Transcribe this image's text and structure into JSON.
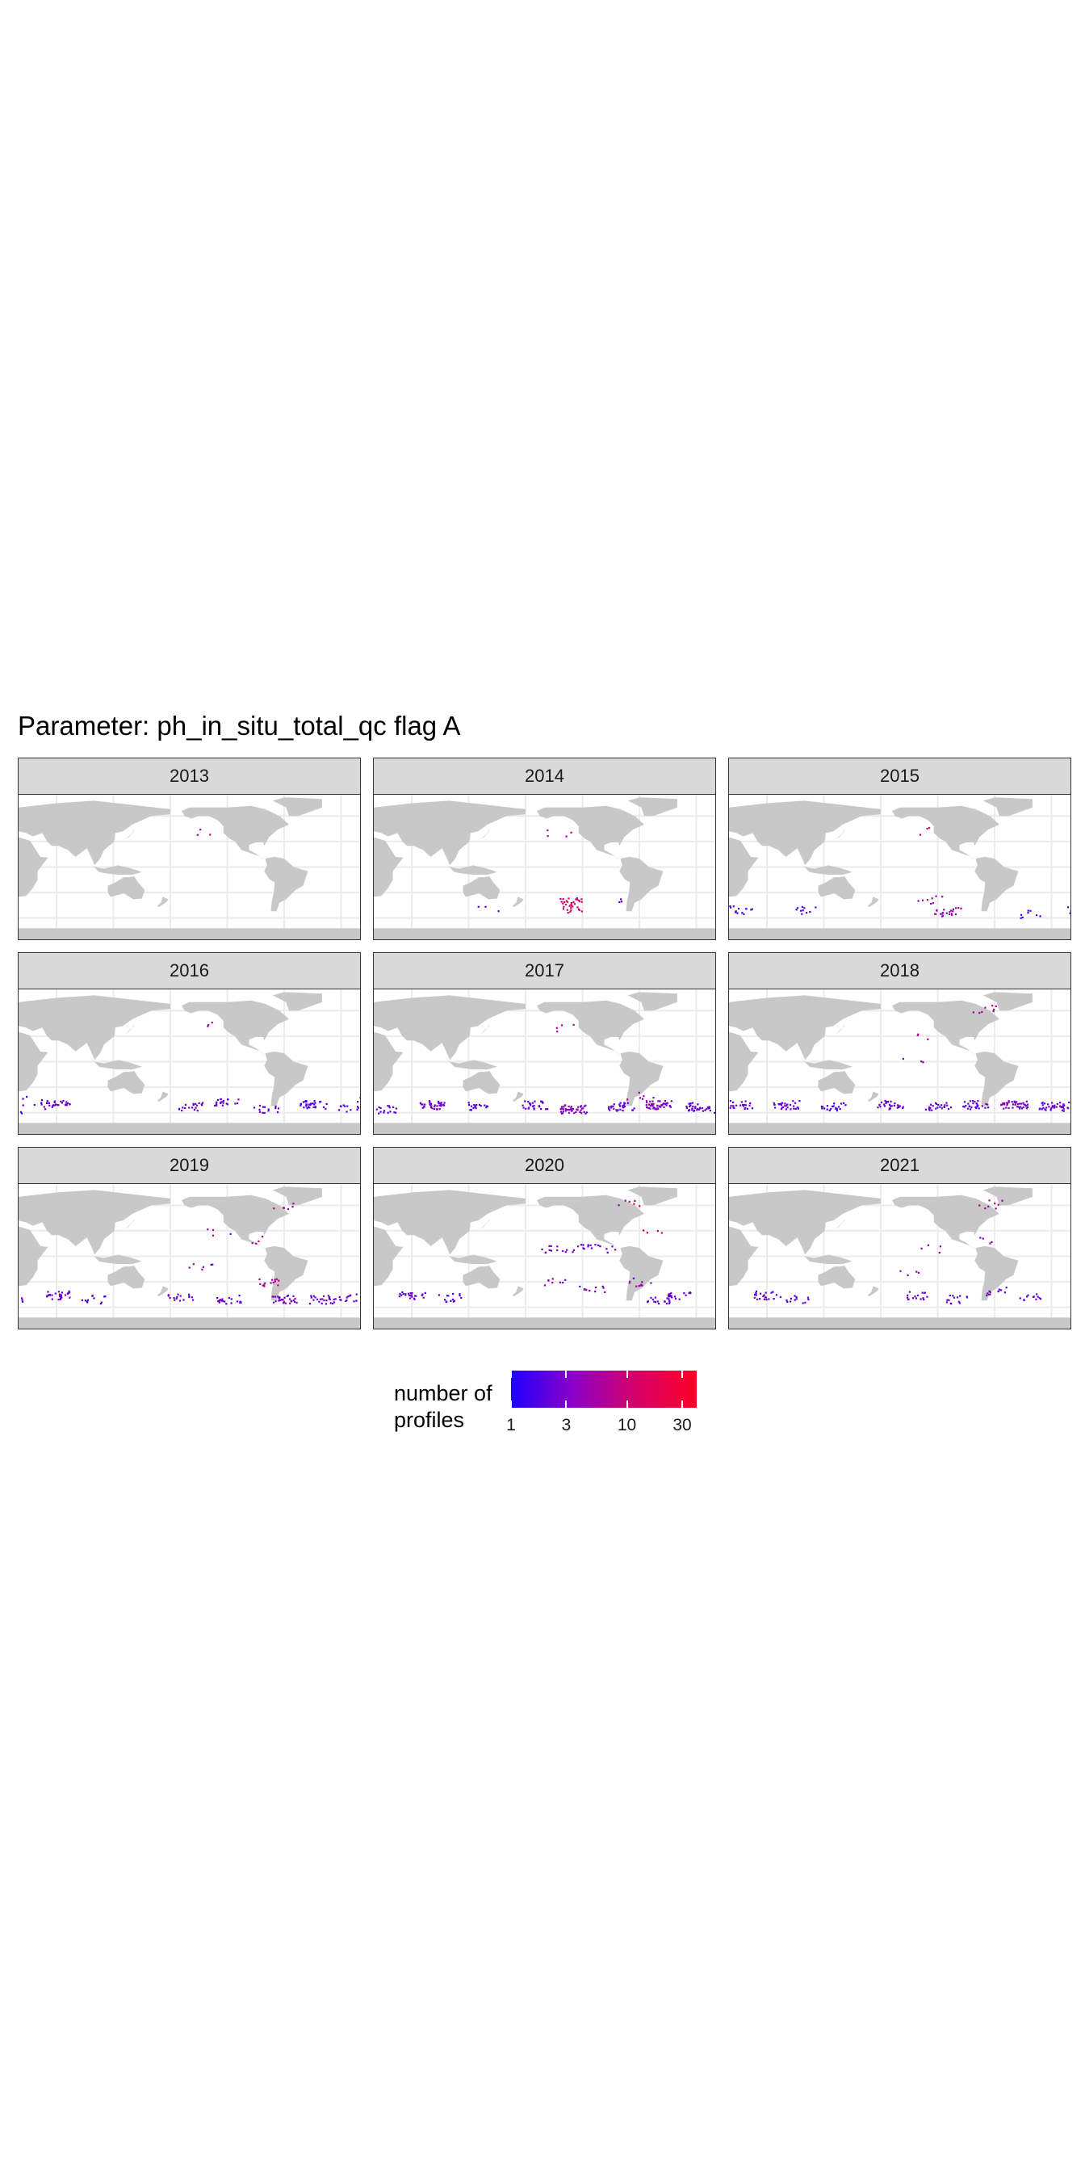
{
  "figure": {
    "title": "Parameter: ph_in_situ_total_qc flag A"
  },
  "colors": {
    "land": "#c8c8c8",
    "grid": "#ebebeb",
    "low": "#1f00ff",
    "mid": "#a000a8",
    "high": "#ff0026"
  },
  "panels": [
    {
      "year": "2013",
      "clusters": [
        [
          -145,
          42,
          0.7,
          3
        ],
        [
          0,
          0,
          0,
          0
        ]
      ]
    },
    {
      "year": "2014",
      "clusters": [
        [
          -145,
          42,
          0.7,
          4
        ],
        [
          -135,
          -40,
          0.8,
          22
        ],
        [
          -130,
          -50,
          0.8,
          12
        ],
        [
          -90,
          -40,
          0.3,
          3
        ],
        [
          140,
          -50,
          0.2,
          3
        ]
      ]
    },
    {
      "year": "2015",
      "clusters": [
        [
          -140,
          43,
          0.8,
          3
        ],
        [
          -130,
          -38,
          0.6,
          8
        ],
        [
          -110,
          -52,
          0.5,
          22
        ],
        [
          -20,
          -55,
          0.2,
          8
        ],
        [
          30,
          -50,
          0.2,
          16
        ],
        [
          100,
          -50,
          0.2,
          10
        ]
      ]
    },
    {
      "year": "2016",
      "clusters": [
        [
          60,
          -50,
          0.3,
          26
        ],
        [
          30,
          -45,
          0.2,
          8
        ],
        [
          -160,
          -52,
          0.3,
          20
        ],
        [
          -120,
          -48,
          0.3,
          20
        ],
        [
          -80,
          -55,
          0.3,
          14
        ],
        [
          -30,
          -50,
          0.2,
          30
        ],
        [
          10,
          -55,
          0.2,
          14
        ],
        [
          -140,
          45,
          0.6,
          3
        ]
      ]
    },
    {
      "year": "2017",
      "clusters": [
        [
          80,
          -50,
          0.3,
          34
        ],
        [
          130,
          -52,
          0.2,
          18
        ],
        [
          -170,
          -50,
          0.3,
          26
        ],
        [
          -130,
          -55,
          0.4,
          44
        ],
        [
          -80,
          -52,
          0.3,
          28
        ],
        [
          -40,
          -50,
          0.4,
          46
        ],
        [
          0,
          -52,
          0.3,
          34
        ],
        [
          30,
          -55,
          0.3,
          18
        ],
        [
          -140,
          40,
          0.5,
          4
        ],
        [
          -60,
          -40,
          0.5,
          6
        ]
      ]
    },
    {
      "year": "2018",
      "clusters": [
        [
          80,
          -50,
          0.3,
          30
        ],
        [
          130,
          -52,
          0.2,
          20
        ],
        [
          -170,
          -50,
          0.3,
          28
        ],
        [
          -120,
          -52,
          0.3,
          24
        ],
        [
          -80,
          -50,
          0.3,
          28
        ],
        [
          -40,
          -50,
          0.4,
          40
        ],
        [
          0,
          -52,
          0.3,
          34
        ],
        [
          30,
          -50,
          0.3,
          24
        ],
        [
          -70,
          62,
          0.7,
          8
        ],
        [
          -140,
          30,
          0.6,
          3
        ],
        [
          -150,
          0,
          0.4,
          3
        ]
      ]
    },
    {
      "year": "2019",
      "clusters": [
        [
          60,
          -45,
          0.3,
          28
        ],
        [
          100,
          -50,
          0.2,
          12
        ],
        [
          -170,
          -48,
          0.3,
          16
        ],
        [
          -120,
          -50,
          0.3,
          20
        ],
        [
          -75,
          -30,
          0.6,
          14
        ],
        [
          -60,
          -50,
          0.4,
          30
        ],
        [
          -20,
          -50,
          0.3,
          24
        ],
        [
          10,
          -48,
          0.3,
          16
        ],
        [
          -65,
          60,
          0.7,
          6
        ],
        [
          -130,
          30,
          0.5,
          4
        ],
        [
          -150,
          -10,
          0.5,
          6
        ],
        [
          -90,
          20,
          0.7,
          4
        ]
      ]
    },
    {
      "year": "2020",
      "clusters": [
        [
          60,
          -45,
          0.3,
          24
        ],
        [
          100,
          -48,
          0.2,
          14
        ],
        [
          -150,
          10,
          0.3,
          12
        ],
        [
          -120,
          10,
          0.3,
          10
        ],
        [
          -100,
          10,
          0.3,
          8
        ],
        [
          -150,
          -30,
          0.5,
          8
        ],
        [
          -110,
          -38,
          0.4,
          10
        ],
        [
          -60,
          -30,
          0.5,
          10
        ],
        [
          -40,
          -50,
          0.3,
          22
        ],
        [
          -20,
          -45,
          0.3,
          14
        ],
        [
          -70,
          62,
          0.7,
          6
        ],
        [
          -50,
          30,
          0.8,
          4
        ]
      ]
    },
    {
      "year": "2021",
      "clusters": [
        [
          60,
          -45,
          0.3,
          22
        ],
        [
          90,
          -50,
          0.2,
          12
        ],
        [
          -140,
          -45,
          0.3,
          16
        ],
        [
          -100,
          -50,
          0.3,
          14
        ],
        [
          -60,
          -40,
          0.4,
          12
        ],
        [
          -20,
          -48,
          0.3,
          12
        ],
        [
          -65,
          62,
          0.7,
          8
        ],
        [
          -130,
          10,
          0.5,
          4
        ],
        [
          -70,
          20,
          0.5,
          4
        ],
        [
          -150,
          -20,
          0.4,
          4
        ]
      ]
    }
  ],
  "legend": {
    "title_line1": "number of",
    "title_line2": "profiles",
    "labels": [
      "1",
      "3",
      "10",
      "30"
    ],
    "values": [
      1,
      3,
      10,
      30
    ],
    "range": [
      1,
      40
    ],
    "scale": "log"
  }
}
